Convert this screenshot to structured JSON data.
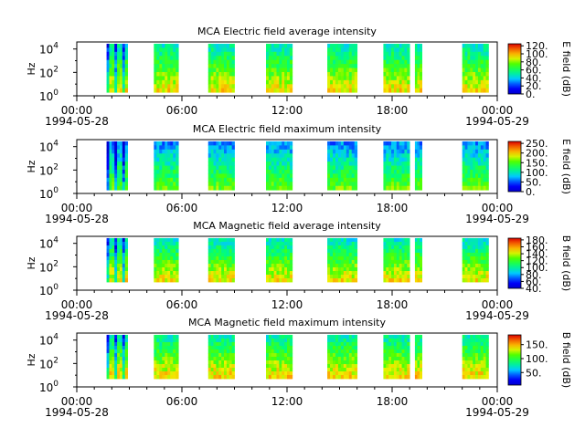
{
  "figure": {
    "background": "#ffffff"
  },
  "chart_data": [
    {
      "type": "heatmap",
      "title": "MCA  Electric field average intensity",
      "ylabel": "Hz",
      "ylim_log10": [
        0,
        4.6
      ],
      "y_ticks": [
        {
          "exp": 0,
          "label_base": "10",
          "label_exp": "0"
        },
        {
          "exp": 2,
          "label_base": "10",
          "label_exp": "2"
        },
        {
          "exp": 4,
          "label_base": "10",
          "label_exp": "4"
        }
      ],
      "x_start": "1994-05-28 00:00",
      "x_end": "1994-05-29 00:00",
      "x_ticks": [
        {
          "h": 0,
          "time": "00:00",
          "date": "1994-05-28"
        },
        {
          "h": 6,
          "time": "06:00",
          "date": ""
        },
        {
          "h": 12,
          "time": "12:00",
          "date": ""
        },
        {
          "h": 18,
          "time": "18:00",
          "date": ""
        },
        {
          "h": 24,
          "time": "00:00",
          "date": "1994-05-29"
        }
      ],
      "colorbar": {
        "label": "E field (dB)",
        "range": [
          0,
          125
        ],
        "ticks": [
          "0.",
          "20.",
          "40.",
          "60.",
          "80.",
          "100.",
          "120."
        ],
        "tick_values": [
          0,
          20,
          40,
          60,
          80,
          100,
          120
        ],
        "colormap": "rainbow"
      },
      "data_gaps_hours": [
        [
          1.7,
          2.9
        ],
        [
          4.4,
          5.8
        ],
        [
          7.5,
          9.0
        ],
        [
          10.8,
          12.3
        ],
        [
          14.3,
          16.0
        ],
        [
          17.5,
          19.0
        ],
        [
          19.3,
          19.7
        ],
        [
          22.0,
          23.5
        ]
      ],
      "level_db": 70
    },
    {
      "type": "heatmap",
      "title": "MCA  Electric field maximum intensity",
      "ylabel": "Hz",
      "ylim_log10": [
        0,
        4.6
      ],
      "y_ticks": [
        {
          "exp": 0,
          "label_base": "10",
          "label_exp": "0"
        },
        {
          "exp": 2,
          "label_base": "10",
          "label_exp": "2"
        },
        {
          "exp": 4,
          "label_base": "10",
          "label_exp": "4"
        }
      ],
      "x_start": "1994-05-28 00:00",
      "x_end": "1994-05-29 00:00",
      "x_ticks": [
        {
          "h": 0,
          "time": "00:00",
          "date": "1994-05-28"
        },
        {
          "h": 6,
          "time": "06:00",
          "date": ""
        },
        {
          "h": 12,
          "time": "12:00",
          "date": ""
        },
        {
          "h": 18,
          "time": "18:00",
          "date": ""
        },
        {
          "h": 24,
          "time": "00:00",
          "date": "1994-05-29"
        }
      ],
      "colorbar": {
        "label": "E field (dB)",
        "range": [
          0,
          260
        ],
        "ticks": [
          "0.",
          "50.",
          "100.",
          "150.",
          "200.",
          "250."
        ],
        "tick_values": [
          0,
          50,
          100,
          150,
          200,
          250
        ],
        "colormap": "rainbow"
      },
      "data_gaps_hours": [
        [
          1.7,
          2.9
        ],
        [
          4.4,
          5.8
        ],
        [
          7.5,
          9.0
        ],
        [
          10.8,
          12.3
        ],
        [
          14.3,
          16.0
        ],
        [
          17.5,
          19.0
        ],
        [
          19.3,
          19.7
        ],
        [
          22.0,
          23.5
        ]
      ],
      "level_db": 110
    },
    {
      "type": "heatmap",
      "title": "MCA  Magnetic field average intensity",
      "ylabel": "Hz",
      "ylim_log10": [
        0,
        4.6
      ],
      "y_ticks": [
        {
          "exp": 0,
          "label_base": "10",
          "label_exp": "0"
        },
        {
          "exp": 2,
          "label_base": "10",
          "label_exp": "2"
        },
        {
          "exp": 4,
          "label_base": "10",
          "label_exp": "4"
        }
      ],
      "x_start": "1994-05-28 00:00",
      "x_end": "1994-05-29 00:00",
      "x_ticks": [
        {
          "h": 0,
          "time": "00:00",
          "date": "1994-05-28"
        },
        {
          "h": 6,
          "time": "06:00",
          "date": ""
        },
        {
          "h": 12,
          "time": "12:00",
          "date": ""
        },
        {
          "h": 18,
          "time": "18:00",
          "date": ""
        },
        {
          "h": 24,
          "time": "00:00",
          "date": "1994-05-29"
        }
      ],
      "colorbar": {
        "label": "B field (dB)",
        "range": [
          40,
          185
        ],
        "ticks": [
          "40.",
          "60.",
          "80.",
          "100.",
          "120.",
          "140.",
          "160.",
          "180."
        ],
        "tick_values": [
          40,
          60,
          80,
          100,
          120,
          140,
          160,
          180
        ],
        "colormap": "rainbow"
      },
      "data_gaps_hours": [
        [
          1.7,
          2.9
        ],
        [
          4.4,
          5.8
        ],
        [
          7.5,
          9.0
        ],
        [
          10.8,
          12.3
        ],
        [
          14.3,
          16.0
        ],
        [
          17.5,
          19.0
        ],
        [
          19.3,
          19.7
        ],
        [
          22.0,
          23.5
        ]
      ],
      "level_db": 120
    },
    {
      "type": "heatmap",
      "title": "MCA  Magnetic field maximum intensity",
      "ylabel": "Hz",
      "ylim_log10": [
        0,
        4.6
      ],
      "y_ticks": [
        {
          "exp": 0,
          "label_base": "10",
          "label_exp": "0"
        },
        {
          "exp": 2,
          "label_base": "10",
          "label_exp": "2"
        },
        {
          "exp": 4,
          "label_base": "10",
          "label_exp": "4"
        }
      ],
      "x_start": "1994-05-28 00:00",
      "x_end": "1994-05-29 00:00",
      "x_ticks": [
        {
          "h": 0,
          "time": "00:00",
          "date": "1994-05-28"
        },
        {
          "h": 6,
          "time": "06:00",
          "date": ""
        },
        {
          "h": 12,
          "time": "12:00",
          "date": ""
        },
        {
          "h": 18,
          "time": "18:00",
          "date": ""
        },
        {
          "h": 24,
          "time": "00:00",
          "date": "1994-05-29"
        }
      ],
      "colorbar": {
        "label": "B field (dB)",
        "range": [
          5,
          185
        ],
        "ticks": [
          "50.",
          "100.",
          "150."
        ],
        "tick_values": [
          50,
          100,
          150
        ],
        "colormap": "rainbow"
      },
      "data_gaps_hours": [
        [
          1.7,
          2.9
        ],
        [
          4.4,
          5.8
        ],
        [
          7.5,
          9.0
        ],
        [
          10.8,
          12.3
        ],
        [
          14.3,
          16.0
        ],
        [
          17.5,
          19.0
        ],
        [
          19.3,
          19.7
        ],
        [
          22.0,
          23.5
        ]
      ],
      "level_db": 110
    }
  ]
}
